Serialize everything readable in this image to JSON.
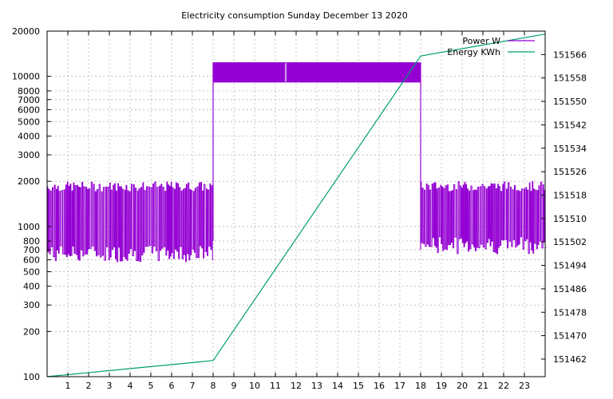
{
  "chart_data": {
    "type": "line",
    "title": "Electricity consumption Sunday December 13 2020",
    "xlabel": "",
    "ylabel": "",
    "y2label": "",
    "grid": true,
    "legend_position": "top-right",
    "x_range": [
      0,
      24
    ],
    "x_ticks": [
      1,
      2,
      3,
      4,
      5,
      6,
      7,
      8,
      9,
      10,
      11,
      12,
      13,
      14,
      15,
      16,
      17,
      18,
      19,
      20,
      21,
      22,
      23
    ],
    "y_scale": "log",
    "y_range": [
      100,
      20000
    ],
    "y_ticks": [
      100,
      200,
      300,
      400,
      500,
      600,
      700,
      800,
      1000,
      2000,
      3000,
      4000,
      5000,
      6000,
      7000,
      8000,
      10000,
      20000
    ],
    "y2_range": [
      151456,
      151574
    ],
    "y2_ticks": [
      151462,
      151470,
      151478,
      151486,
      151494,
      151502,
      151510,
      151518,
      151526,
      151534,
      151542,
      151550,
      151558,
      151566
    ],
    "series": [
      {
        "name": "Power W",
        "axis": "y",
        "color": "#9400d3",
        "segments": [
          {
            "x_start": 0,
            "x_end": 8,
            "low": 580,
            "high": 1980
          },
          {
            "x_start": 8,
            "x_end": 18,
            "low": 9100,
            "high": 12400
          },
          {
            "x_start": 18,
            "x_end": 24,
            "low": 660,
            "high": 1990
          }
        ]
      },
      {
        "name": "Energy KWh",
        "axis": "y2",
        "color": "#009e73",
        "x": [
          0,
          8,
          18,
          24
        ],
        "y": [
          151456,
          151461.5,
          151565.5,
          151573
        ]
      }
    ]
  }
}
